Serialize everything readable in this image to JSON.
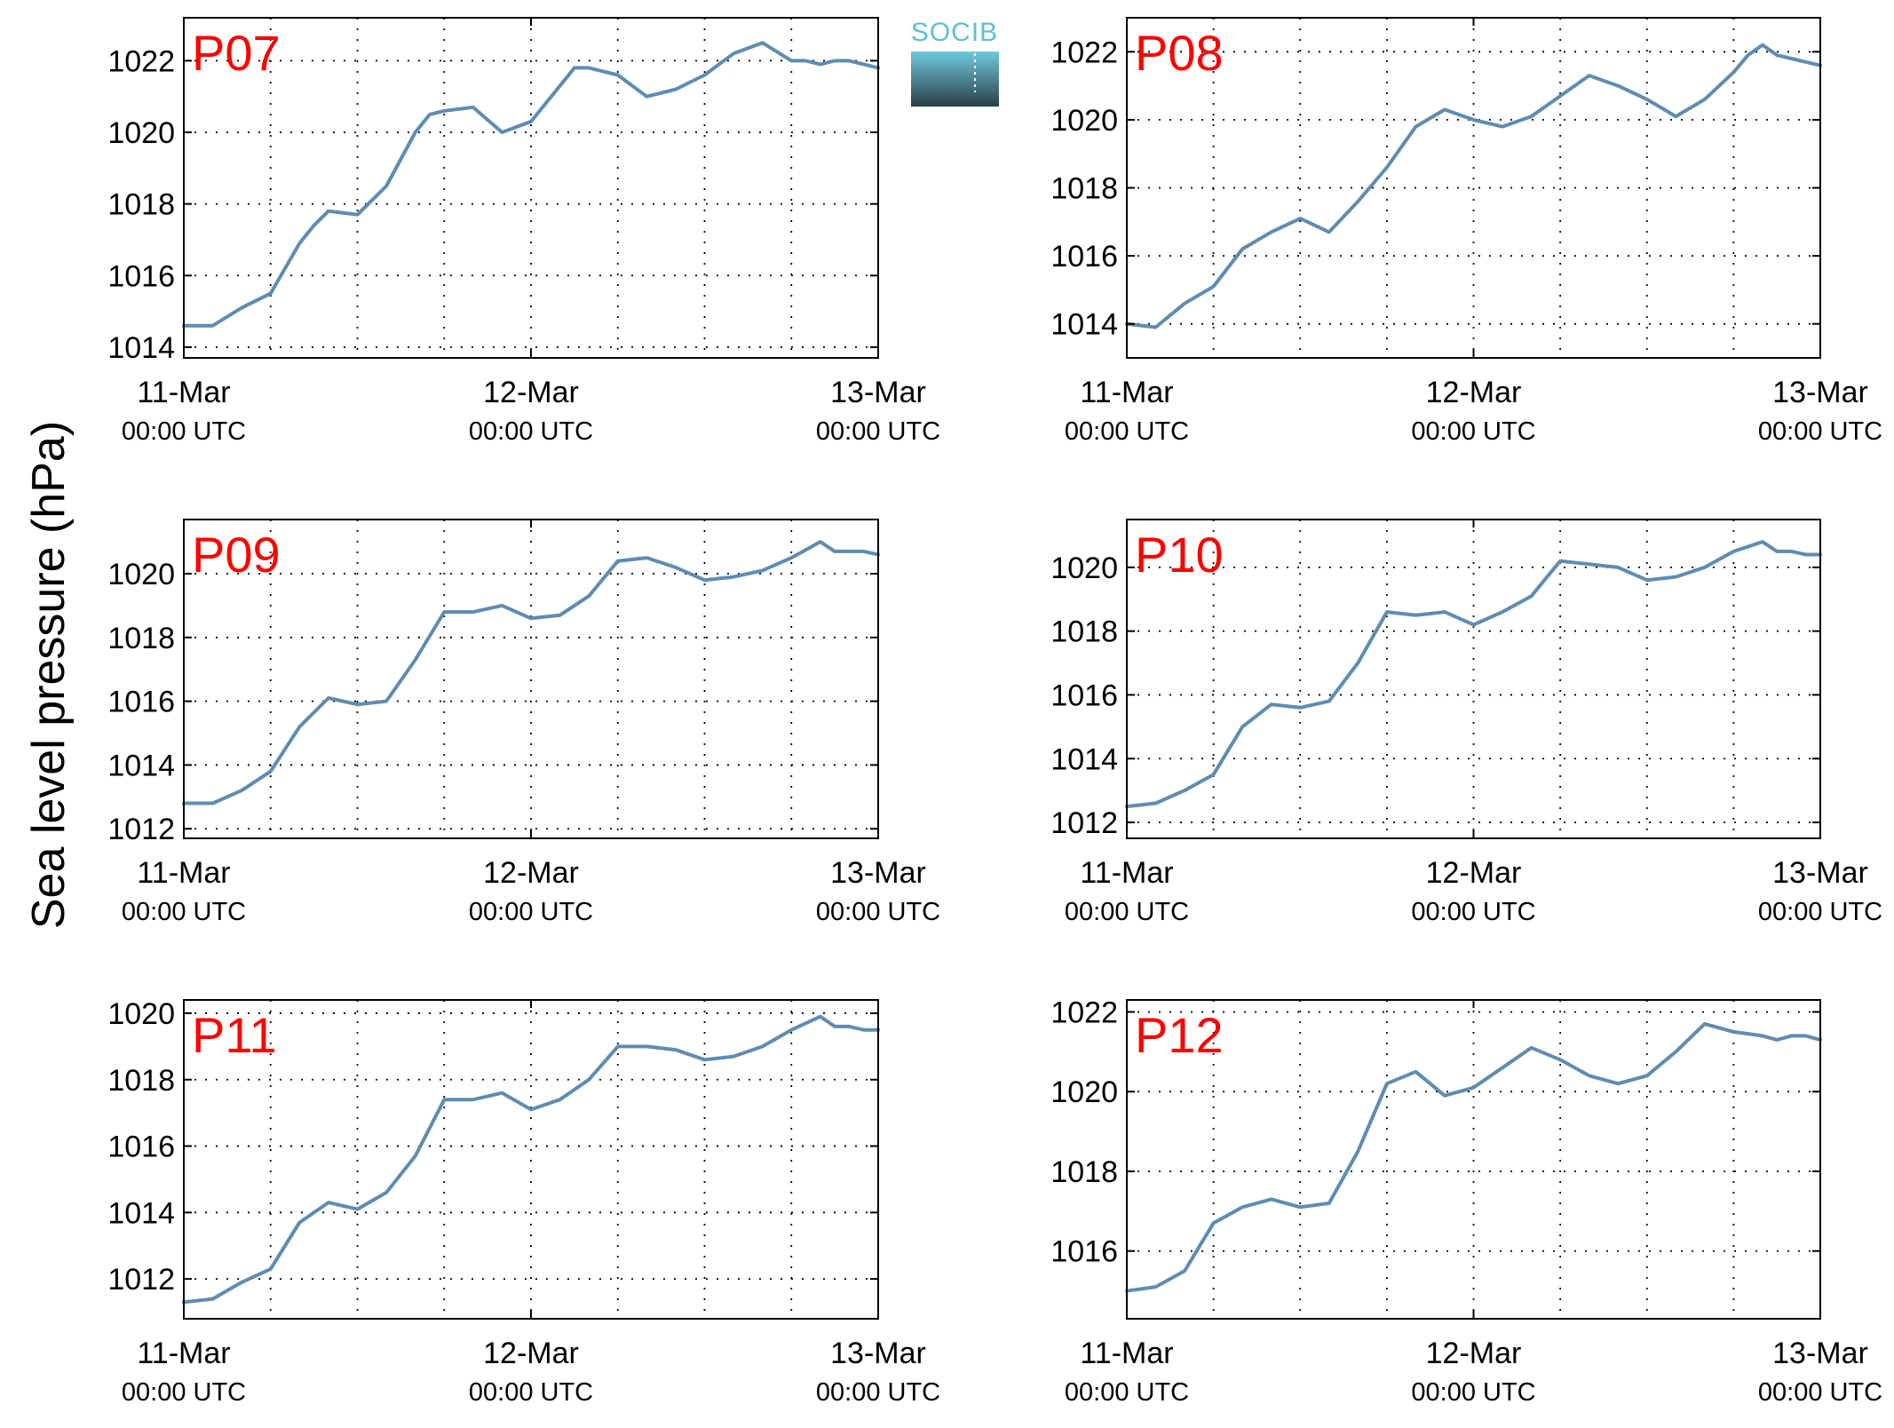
{
  "figure": {
    "ylabel": "Sea level pressure (hPa)",
    "logo_text": "SOCIB",
    "series_color": "#5f8cb0",
    "title_color": "#ff0000",
    "logo_colors": [
      "#6ec9dc",
      "#2b3e48"
    ]
  },
  "chart_data": [
    {
      "type": "line",
      "title": "P07",
      "x_ticks": [
        {
          "main": "11-Mar",
          "sub": "00:00 UTC"
        },
        {
          "main": "12-Mar",
          "sub": "00:00 UTC"
        },
        {
          "main": "13-Mar",
          "sub": "00:00 UTC"
        }
      ],
      "x_tick_hours": [
        0,
        24,
        48
      ],
      "x_grid_hours": [
        6,
        12,
        18,
        24,
        30,
        36,
        42
      ],
      "xlim_hours": [
        0,
        48
      ],
      "ylim": [
        1013.7,
        1023.2
      ],
      "yticks": [
        1014,
        1016,
        1018,
        1020,
        1022
      ],
      "grid": true,
      "x": [
        0,
        2,
        4,
        6,
        8,
        9,
        10,
        12,
        14,
        16,
        17,
        18,
        20,
        22,
        24,
        26,
        27,
        28,
        30,
        32,
        34,
        36,
        38,
        40,
        42,
        43,
        44,
        45,
        46,
        47,
        48
      ],
      "values": [
        1014.6,
        1014.6,
        1015.1,
        1015.5,
        1016.9,
        1017.4,
        1017.8,
        1017.7,
        1018.5,
        1020.0,
        1020.5,
        1020.6,
        1020.7,
        1020.0,
        1020.3,
        1021.3,
        1021.8,
        1021.8,
        1021.6,
        1021.0,
        1021.2,
        1021.6,
        1022.2,
        1022.5,
        1022.0,
        1022.0,
        1021.9,
        1022.0,
        1022.0,
        1021.9,
        1021.8
      ]
    },
    {
      "type": "line",
      "title": "P08",
      "x_ticks": [
        {
          "main": "11-Mar",
          "sub": "00:00 UTC"
        },
        {
          "main": "12-Mar",
          "sub": "00:00 UTC"
        },
        {
          "main": "13-Mar",
          "sub": "00:00 UTC"
        }
      ],
      "x_tick_hours": [
        0,
        24,
        48
      ],
      "x_grid_hours": [
        6,
        12,
        18,
        24,
        30,
        36,
        42
      ],
      "xlim_hours": [
        0,
        48
      ],
      "ylim": [
        1013.0,
        1023.0
      ],
      "yticks": [
        1014,
        1016,
        1018,
        1020,
        1022
      ],
      "grid": true,
      "x": [
        0,
        2,
        4,
        6,
        8,
        10,
        12,
        14,
        16,
        18,
        20,
        22,
        24,
        26,
        28,
        30,
        32,
        34,
        36,
        38,
        40,
        42,
        43,
        44,
        45,
        46,
        47,
        48
      ],
      "values": [
        1014.0,
        1013.9,
        1014.6,
        1015.1,
        1016.2,
        1016.7,
        1017.1,
        1016.7,
        1017.6,
        1018.6,
        1019.8,
        1020.3,
        1020.0,
        1019.8,
        1020.1,
        1020.7,
        1021.3,
        1021.0,
        1020.6,
        1020.1,
        1020.6,
        1021.4,
        1021.9,
        1022.2,
        1021.9,
        1021.8,
        1021.7,
        1021.6
      ]
    },
    {
      "type": "line",
      "title": "P09",
      "x_ticks": [
        {
          "main": "11-Mar",
          "sub": "00:00 UTC"
        },
        {
          "main": "12-Mar",
          "sub": "00:00 UTC"
        },
        {
          "main": "13-Mar",
          "sub": "00:00 UTC"
        }
      ],
      "x_tick_hours": [
        0,
        24,
        48
      ],
      "x_grid_hours": [
        6,
        12,
        18,
        24,
        30,
        36,
        42
      ],
      "xlim_hours": [
        0,
        48
      ],
      "ylim": [
        1011.7,
        1021.7
      ],
      "yticks": [
        1012,
        1014,
        1016,
        1018,
        1020
      ],
      "grid": true,
      "x": [
        0,
        2,
        4,
        6,
        8,
        10,
        12,
        14,
        16,
        18,
        20,
        22,
        24,
        26,
        28,
        30,
        32,
        34,
        36,
        38,
        40,
        42,
        44,
        45,
        46,
        47,
        48
      ],
      "values": [
        1012.8,
        1012.8,
        1013.2,
        1013.8,
        1015.2,
        1016.1,
        1015.9,
        1016.0,
        1017.3,
        1018.8,
        1018.8,
        1019.0,
        1018.6,
        1018.7,
        1019.3,
        1020.4,
        1020.5,
        1020.2,
        1019.8,
        1019.9,
        1020.1,
        1020.5,
        1021.0,
        1020.7,
        1020.7,
        1020.7,
        1020.6
      ]
    },
    {
      "type": "line",
      "title": "P10",
      "x_ticks": [
        {
          "main": "11-Mar",
          "sub": "00:00 UTC"
        },
        {
          "main": "12-Mar",
          "sub": "00:00 UTC"
        },
        {
          "main": "13-Mar",
          "sub": "00:00 UTC"
        }
      ],
      "x_tick_hours": [
        0,
        24,
        48
      ],
      "x_grid_hours": [
        6,
        12,
        18,
        24,
        30,
        36,
        42
      ],
      "xlim_hours": [
        0,
        48
      ],
      "ylim": [
        1011.5,
        1021.5
      ],
      "yticks": [
        1012,
        1014,
        1016,
        1018,
        1020
      ],
      "grid": true,
      "x": [
        0,
        2,
        4,
        6,
        8,
        10,
        12,
        14,
        16,
        18,
        20,
        22,
        24,
        26,
        28,
        30,
        32,
        34,
        36,
        38,
        40,
        42,
        44,
        45,
        46,
        47,
        48
      ],
      "values": [
        1012.5,
        1012.6,
        1013.0,
        1013.5,
        1015.0,
        1015.7,
        1015.6,
        1015.8,
        1017.0,
        1018.6,
        1018.5,
        1018.6,
        1018.2,
        1018.6,
        1019.1,
        1020.2,
        1020.1,
        1020.0,
        1019.6,
        1019.7,
        1020.0,
        1020.5,
        1020.8,
        1020.5,
        1020.5,
        1020.4,
        1020.4
      ]
    },
    {
      "type": "line",
      "title": "P11",
      "x_ticks": [
        {
          "main": "11-Mar",
          "sub": "00:00 UTC"
        },
        {
          "main": "12-Mar",
          "sub": "00:00 UTC"
        },
        {
          "main": "13-Mar",
          "sub": "00:00 UTC"
        }
      ],
      "x_tick_hours": [
        0,
        24,
        48
      ],
      "x_grid_hours": [
        6,
        12,
        18,
        24,
        30,
        36,
        42
      ],
      "xlim_hours": [
        0,
        48
      ],
      "ylim": [
        1010.8,
        1020.4
      ],
      "yticks": [
        1012,
        1014,
        1016,
        1018,
        1020
      ],
      "grid": true,
      "x": [
        0,
        2,
        4,
        6,
        8,
        10,
        12,
        14,
        16,
        18,
        20,
        22,
        24,
        26,
        28,
        30,
        32,
        34,
        36,
        38,
        40,
        42,
        44,
        45,
        46,
        47,
        48
      ],
      "values": [
        1011.3,
        1011.4,
        1011.9,
        1012.3,
        1013.7,
        1014.3,
        1014.1,
        1014.6,
        1015.7,
        1017.4,
        1017.4,
        1017.6,
        1017.1,
        1017.4,
        1018.0,
        1019.0,
        1019.0,
        1018.9,
        1018.6,
        1018.7,
        1019.0,
        1019.5,
        1019.9,
        1019.6,
        1019.6,
        1019.5,
        1019.5
      ]
    },
    {
      "type": "line",
      "title": "P12",
      "x_ticks": [
        {
          "main": "11-Mar",
          "sub": "00:00 UTC"
        },
        {
          "main": "12-Mar",
          "sub": "00:00 UTC"
        },
        {
          "main": "13-Mar",
          "sub": "00:00 UTC"
        }
      ],
      "x_tick_hours": [
        0,
        24,
        48
      ],
      "x_grid_hours": [
        6,
        12,
        18,
        24,
        30,
        36,
        42
      ],
      "xlim_hours": [
        0,
        48
      ],
      "ylim": [
        1014.3,
        1022.3
      ],
      "yticks": [
        1016,
        1018,
        1020,
        1022
      ],
      "grid": true,
      "x": [
        0,
        2,
        4,
        6,
        8,
        10,
        12,
        14,
        16,
        18,
        20,
        22,
        24,
        26,
        28,
        30,
        32,
        34,
        36,
        38,
        40,
        42,
        44,
        45,
        46,
        47,
        48
      ],
      "values": [
        1015.0,
        1015.1,
        1015.5,
        1016.7,
        1017.1,
        1017.3,
        1017.1,
        1017.2,
        1018.5,
        1020.2,
        1020.5,
        1019.9,
        1020.1,
        1020.6,
        1021.1,
        1020.8,
        1020.4,
        1020.2,
        1020.4,
        1021.0,
        1021.7,
        1021.5,
        1021.4,
        1021.3,
        1021.4,
        1021.4,
        1021.3
      ]
    }
  ]
}
